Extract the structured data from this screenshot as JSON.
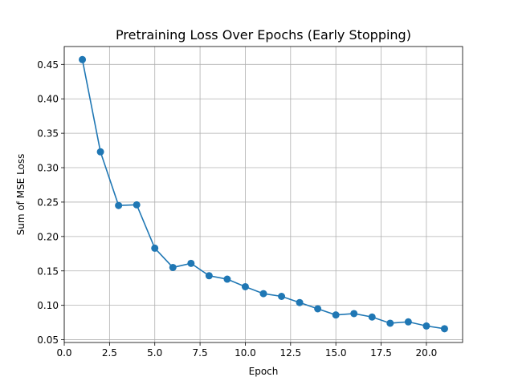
{
  "chart_data": {
    "type": "line",
    "title": "Pretraining Loss Over Epochs (Early Stopping)",
    "xlabel": "Epoch",
    "ylabel": "Sum of MSE Loss",
    "xlim": [
      0.0,
      22.0
    ],
    "ylim": [
      0.046,
      0.476
    ],
    "xticks": [
      0.0,
      2.5,
      5.0,
      7.5,
      10.0,
      12.5,
      15.0,
      17.5,
      20.0
    ],
    "xtick_labels": [
      "0.0",
      "2.5",
      "5.0",
      "7.5",
      "10.0",
      "12.5",
      "15.0",
      "17.5",
      "20.0"
    ],
    "yticks": [
      0.05,
      0.1,
      0.15,
      0.2,
      0.25,
      0.3,
      0.35,
      0.4,
      0.45
    ],
    "ytick_labels": [
      "0.05",
      "0.10",
      "0.15",
      "0.20",
      "0.25",
      "0.30",
      "0.35",
      "0.40",
      "0.45"
    ],
    "grid": true,
    "color": "#1f77b4",
    "marker": "circle",
    "x": [
      1,
      2,
      3,
      4,
      5,
      6,
      7,
      8,
      9,
      10,
      11,
      12,
      13,
      14,
      15,
      16,
      17,
      18,
      19,
      20,
      21
    ],
    "y": [
      0.457,
      0.323,
      0.245,
      0.246,
      0.183,
      0.155,
      0.161,
      0.143,
      0.138,
      0.127,
      0.117,
      0.113,
      0.104,
      0.095,
      0.086,
      0.088,
      0.083,
      0.074,
      0.076,
      0.07,
      0.066
    ]
  }
}
